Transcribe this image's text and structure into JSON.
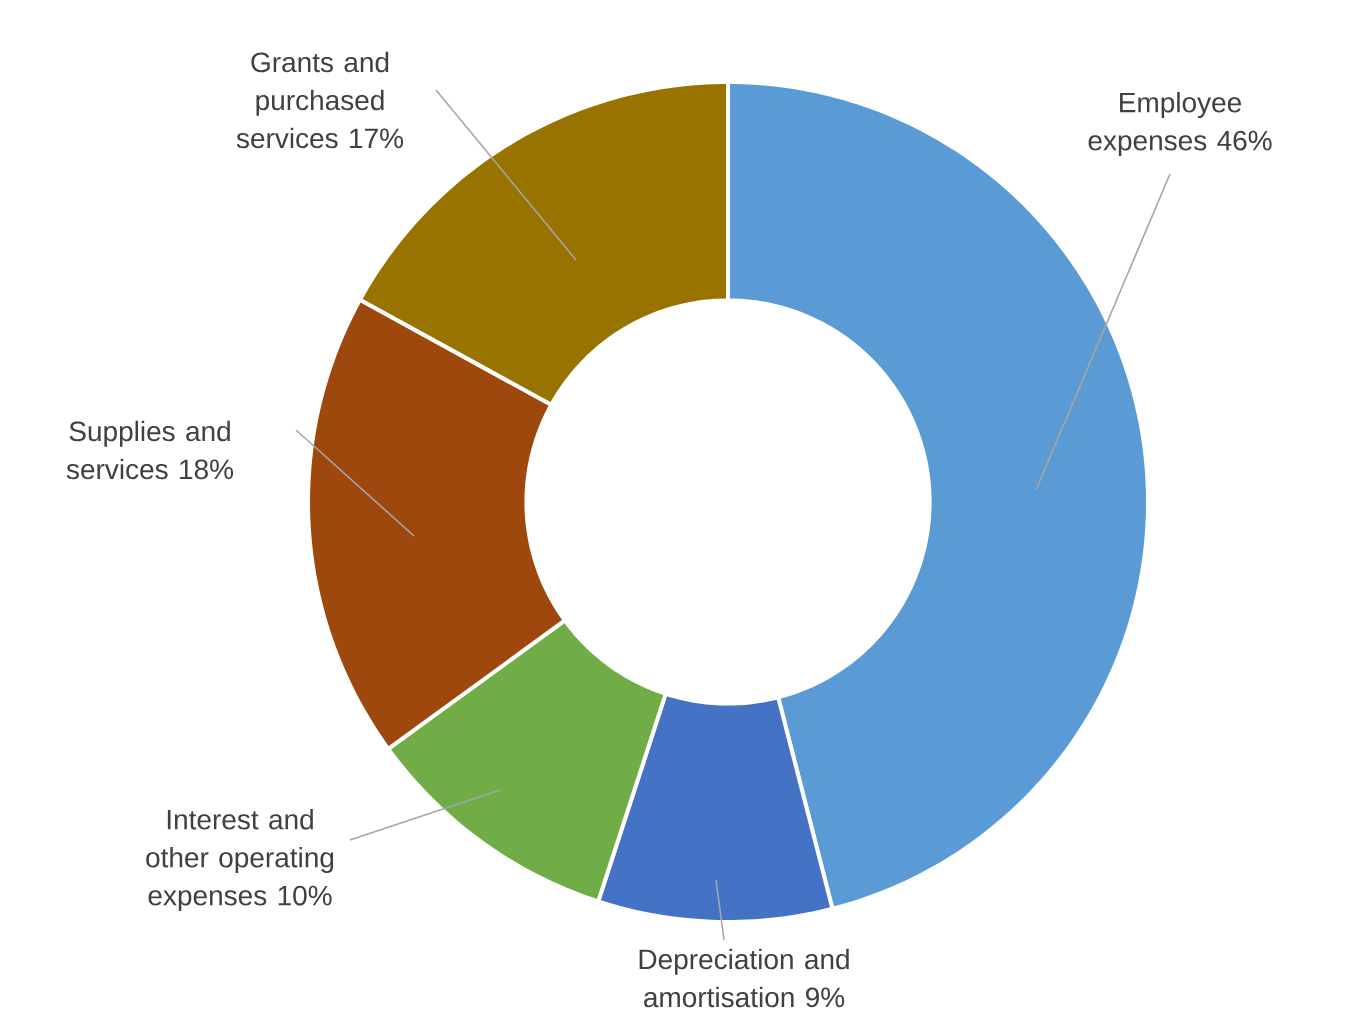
{
  "chart_data": {
    "type": "donut",
    "categories": [
      "Employee expenses",
      "Depreciation and amortisation",
      "Interest and other operating expenses",
      "Supplies and services",
      "Grants and purchased services"
    ],
    "values": [
      46,
      9,
      10,
      18,
      17
    ],
    "value_labels": [
      "46%",
      "9%",
      "10%",
      "18%",
      "17%"
    ],
    "colors": [
      "#5b9bd5",
      "#4472c4",
      "#70ad47",
      "#9e480e",
      "#997300"
    ]
  }
}
